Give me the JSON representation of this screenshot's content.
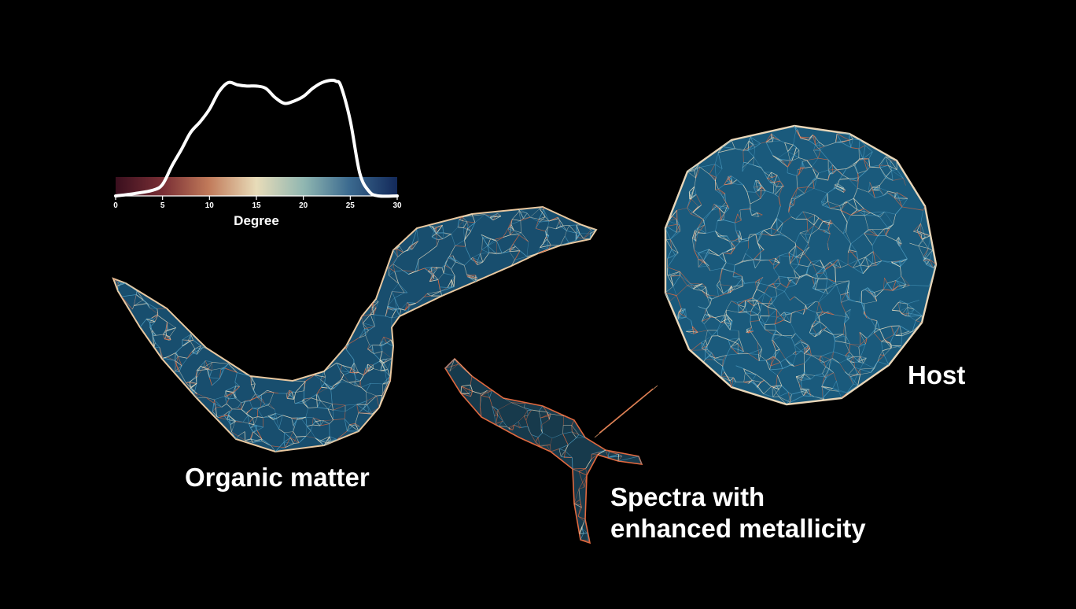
{
  "colorbar": {
    "title": "Degree",
    "ticks": [
      "0",
      "5",
      "10",
      "15",
      "20",
      "25",
      "30"
    ],
    "tick_values": [
      0,
      5,
      10,
      15,
      20,
      25,
      30
    ],
    "range": [
      0,
      30
    ],
    "colors": [
      "#3a0f1e",
      "#7a2f35",
      "#c17a5a",
      "#e8dcb9",
      "#8fb6b1",
      "#3b6a8f",
      "#13295a"
    ]
  },
  "chart_data": {
    "type": "area",
    "xlabel": "Degree",
    "xlim": [
      0,
      30
    ],
    "x": [
      0,
      2,
      4,
      5,
      6,
      7,
      8,
      9,
      10,
      11,
      12,
      13,
      14,
      15,
      16,
      17,
      18,
      19,
      20,
      21,
      22,
      23,
      23.5,
      24,
      25,
      26,
      27,
      28,
      30
    ],
    "y": [
      0,
      0.02,
      0.05,
      0.1,
      0.26,
      0.4,
      0.55,
      0.64,
      0.75,
      0.9,
      0.98,
      0.96,
      0.95,
      0.95,
      0.93,
      0.85,
      0.8,
      0.82,
      0.86,
      0.93,
      0.98,
      1.0,
      0.99,
      0.95,
      0.65,
      0.2,
      0.04,
      0.0,
      0.0
    ]
  },
  "networks": [
    {
      "name": "Organic matter",
      "label": "Organic matter"
    },
    {
      "name": "Spectra",
      "label_lines": [
        "Spectra with",
        "enhanced metallicity"
      ]
    },
    {
      "name": "Host",
      "label": "Host"
    }
  ],
  "colors": {
    "background": "#000000",
    "curve": "#ffffff",
    "edge_low": "#e0693f",
    "edge_mid": "#efe2c4",
    "edge_high": "#4fa0c6",
    "fill": "#1d5f86"
  }
}
